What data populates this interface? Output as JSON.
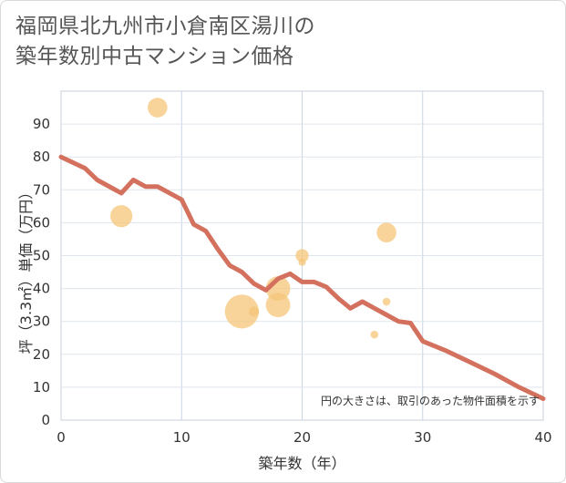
{
  "title_lines": [
    "福岡県北九州市小倉南区湯川の",
    "築年数別中古マンション価格"
  ],
  "chart_data": {
    "type": "scatter",
    "xlabel": "築年数（年）",
    "ylabel": "坪（3.3㎡）単価（万円）",
    "xlim": [
      0,
      40
    ],
    "ylim": [
      0,
      100
    ],
    "x_ticks": [
      "0",
      "10",
      "20",
      "30",
      "40"
    ],
    "y_ticks": [
      "0",
      "10",
      "20",
      "30",
      "40",
      "50",
      "60",
      "70",
      "80",
      "90"
    ],
    "grid": true,
    "note": "円の大きさは、取引のあった物件面積を示す",
    "bubble_color": "#f5c57a",
    "line_color": "#d4705e",
    "bubbles": [
      {
        "x": 8,
        "y": 95,
        "size": 3
      },
      {
        "x": 5,
        "y": 62,
        "size": 3.5
      },
      {
        "x": 15,
        "y": 33,
        "size": 6
      },
      {
        "x": 16,
        "y": 33,
        "size": 1
      },
      {
        "x": 18,
        "y": 40,
        "size": 4
      },
      {
        "x": 18,
        "y": 35,
        "size": 4
      },
      {
        "x": 20,
        "y": 50,
        "size": 1.6
      },
      {
        "x": 20,
        "y": 48,
        "size": 0.4
      },
      {
        "x": 27,
        "y": 57,
        "size": 3
      },
      {
        "x": 27,
        "y": 36,
        "size": 0.5
      },
      {
        "x": 26,
        "y": 26,
        "size": 0.5
      }
    ],
    "trend": {
      "x": [
        0,
        2,
        3,
        5,
        6,
        7,
        8,
        10,
        11,
        12,
        13,
        14,
        15,
        16,
        17,
        18,
        19,
        20,
        21,
        22,
        23,
        24,
        25,
        26,
        27,
        28,
        29,
        30,
        32,
        34,
        36,
        38,
        40
      ],
      "y": [
        80,
        76.5,
        73,
        69,
        73,
        71,
        71,
        67,
        59.5,
        57.5,
        52,
        47,
        45,
        41.5,
        39.5,
        43,
        44.5,
        42,
        42,
        40.5,
        37,
        34,
        36,
        34,
        32,
        30,
        29.5,
        24,
        21,
        17.5,
        14,
        10,
        6.5
      ]
    }
  }
}
